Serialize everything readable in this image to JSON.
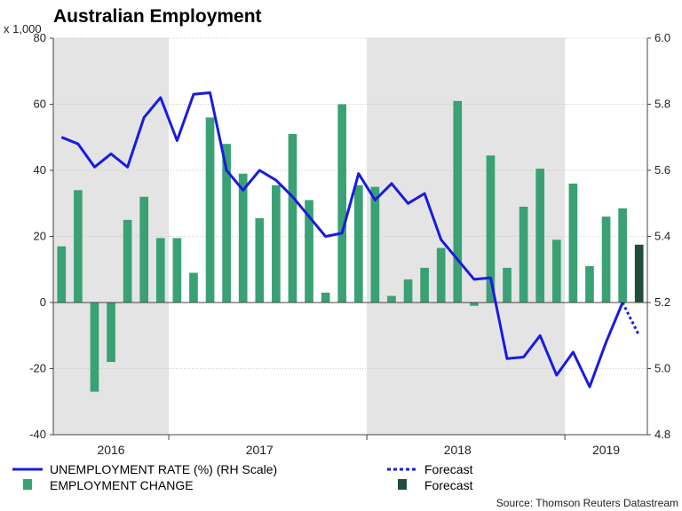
{
  "chart_data": {
    "type": "bar+line",
    "title": "Australian Employment",
    "left_axis": {
      "unit_label": "x 1,000",
      "ylim": [
        -40,
        80
      ],
      "ticks": [
        "-40",
        "-20",
        "0",
        "20",
        "40",
        "60",
        "80"
      ]
    },
    "right_axis": {
      "ylim": [
        4.8,
        6.0
      ],
      "ticks": [
        "4.8",
        "5.0",
        "5.2",
        "5.4",
        "5.6",
        "5.8",
        "6.0"
      ]
    },
    "x_labels": [
      {
        "label": "2016",
        "at_month": 3.5
      },
      {
        "label": "2017",
        "at_month": 12.5
      },
      {
        "label": "2018",
        "at_month": 24.5
      },
      {
        "label": "2019",
        "at_month": 33.5
      }
    ],
    "shaded_periods": [
      {
        "start_month": 0,
        "end_month": 7
      },
      {
        "start_month": 19,
        "end_month": 31
      }
    ],
    "bar_series": {
      "name": "EMPLOYMENT CHANGE",
      "color": "#3aa174",
      "values": [
        17,
        34,
        -27,
        -18,
        25,
        32,
        19.5,
        19.5,
        9,
        56,
        48,
        39,
        25.5,
        35.5,
        51,
        31,
        3,
        60,
        35.5,
        35,
        2,
        7,
        10.5,
        16.5,
        61,
        -1,
        44.5,
        10.5,
        29,
        40.5,
        19,
        36,
        11,
        26,
        28.5
      ]
    },
    "forecast_bar": {
      "name": "Forecast",
      "color": "#1f4d3a",
      "value": 17.5
    },
    "line_series": {
      "name": "UNEMPLOYMENT RATE (%) (RH Scale)",
      "color": "#1a1ae0",
      "values": [
        5.7,
        5.68,
        5.61,
        5.65,
        5.61,
        5.76,
        5.82,
        5.69,
        5.83,
        5.835,
        5.6,
        5.54,
        5.6,
        5.57,
        5.52,
        5.46,
        5.4,
        5.41,
        5.59,
        5.51,
        5.56,
        5.5,
        5.53,
        5.39,
        5.33,
        5.27,
        5.275,
        5.03,
        5.035,
        5.1,
        4.98,
        5.05,
        4.945,
        5.08,
        5.2
      ]
    },
    "forecast_line": {
      "name": "Forecast",
      "values": [
        5.2,
        5.1
      ]
    }
  },
  "legend": {
    "unemployment": "UNEMPLOYMENT RATE (%) (RH Scale)",
    "employment": "EMPLOYMENT CHANGE",
    "forecast_line": "Forecast",
    "forecast_bar": "Forecast"
  },
  "source": "Source: Thomson Reuters Datastream"
}
